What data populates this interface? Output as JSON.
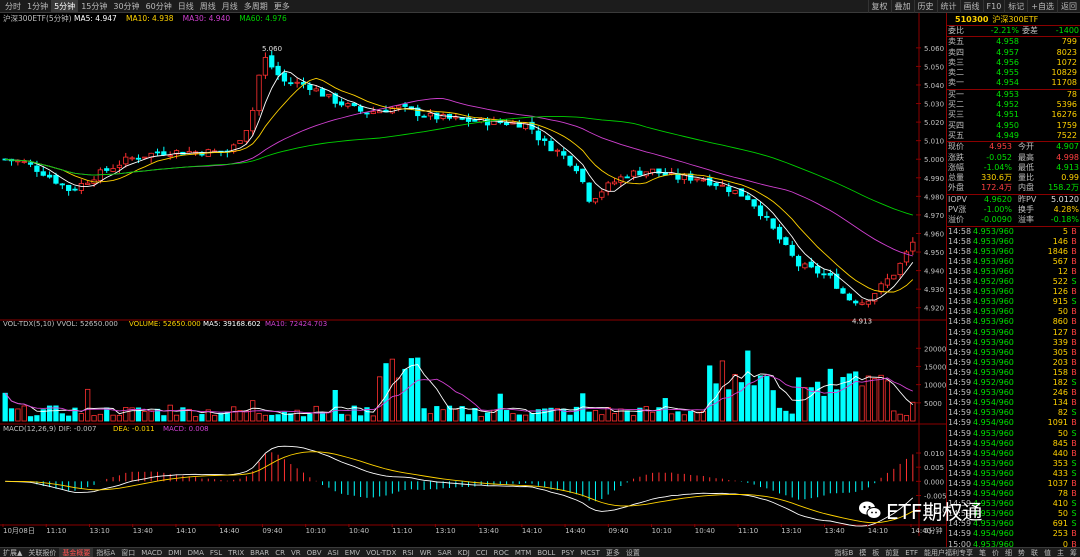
{
  "toolbar": {
    "periods": [
      "分时",
      "1分钟",
      "5分钟",
      "15分钟",
      "30分钟",
      "60分钟",
      "日线",
      "周线",
      "月线",
      "多周期",
      "更多"
    ],
    "active_period": 2,
    "right_tabs": [
      "叠加",
      "历史",
      "统计",
      "画线",
      "F10",
      "标记",
      "+自选",
      "返回"
    ],
    "right_first": "复权"
  },
  "main_chart": {
    "title": "沪深300ETF(5分钟)",
    "ma_labels": [
      {
        "text": "MA5: 4.947",
        "color": "#ffffff"
      },
      {
        "text": "MA10: 4.938",
        "color": "#ffd200"
      },
      {
        "text": "MA30: 4.940",
        "color": "#d040d0"
      },
      {
        "text": "MA60: 4.976",
        "color": "#00d000"
      }
    ],
    "high_label": "5.060",
    "low_label": "4.913",
    "y_ticks": [
      "5.060",
      "5.050",
      "5.040",
      "5.030",
      "5.020",
      "5.010",
      "5.000",
      "4.990",
      "4.980",
      "4.970",
      "4.960",
      "4.950",
      "4.940",
      "4.930",
      "4.920"
    ]
  },
  "vol_chart": {
    "labels": [
      {
        "text": "VOL-TDX(5,10)  VVOL: 52650.000",
        "color": "#c0c0c0"
      },
      {
        "text": "VOLUME: 52650.000",
        "color": "#ffd200"
      },
      {
        "text": "MA5: 39168.602",
        "color": "#ffffff"
      },
      {
        "text": "MA10: 72424.703",
        "color": "#d040d0"
      }
    ],
    "y_ticks": [
      "20000",
      "15000",
      "10000",
      "5000"
    ]
  },
  "macd_chart": {
    "labels": [
      {
        "text": "MACD(12,26,9)  DIF: -0.007",
        "color": "#c0c0c0"
      },
      {
        "text": "DEA: -0.011",
        "color": "#ffd200"
      },
      {
        "text": "MACD: 0.008",
        "color": "#d040d0"
      }
    ],
    "y_ticks": [
      "0.010",
      "0.005",
      "0.000",
      "-0.005",
      "-0.010"
    ]
  },
  "x_axis": {
    "labels": [
      "10月08日",
      "11:10",
      "13:10",
      "13:40",
      "14:10",
      "14:40",
      "09:40",
      "10:10",
      "10:40",
      "11:10",
      "13:10",
      "13:40",
      "14:10",
      "14:40",
      "09:40",
      "10:10",
      "10:40",
      "11:10",
      "13:10",
      "13:40",
      "14:10",
      "14:40"
    ],
    "unit": "5分钟"
  },
  "panel": {
    "code": "510300",
    "name": "沪深300ETF",
    "weibi": {
      "label": "委比",
      "value": "-2.21%",
      "label2": "委差",
      "value2": "-1400"
    },
    "asks": [
      {
        "label": "卖五",
        "price": "4.958",
        "vol": "799"
      },
      {
        "label": "卖四",
        "price": "4.957",
        "vol": "8023"
      },
      {
        "label": "卖三",
        "price": "4.956",
        "vol": "1072"
      },
      {
        "label": "卖二",
        "price": "4.955",
        "vol": "10829"
      },
      {
        "label": "卖一",
        "price": "4.954",
        "vol": "11708"
      }
    ],
    "bids": [
      {
        "label": "买一",
        "price": "4.953",
        "vol": "78"
      },
      {
        "label": "买二",
        "price": "4.952",
        "vol": "5396"
      },
      {
        "label": "买三",
        "price": "4.951",
        "vol": "16276"
      },
      {
        "label": "买四",
        "price": "4.950",
        "vol": "1759"
      },
      {
        "label": "买五",
        "price": "4.949",
        "vol": "7522"
      }
    ],
    "stats": [
      {
        "l1": "现价",
        "v1": "4.953",
        "c1": "red",
        "l2": "今开",
        "v2": "4.907",
        "c2": "green"
      },
      {
        "l1": "涨跌",
        "v1": "-0.052",
        "c1": "green",
        "l2": "最高",
        "v2": "4.998",
        "c2": "red"
      },
      {
        "l1": "涨幅",
        "v1": "-1.04%",
        "c1": "green",
        "l2": "最低",
        "v2": "4.913",
        "c2": "green"
      },
      {
        "l1": "总量",
        "v1": "330.6万",
        "c1": "yellow",
        "l2": "量比",
        "v2": "0.99",
        "c2": "yellow"
      },
      {
        "l1": "外盘",
        "v1": "172.4万",
        "c1": "red",
        "l2": "内盘",
        "v2": "158.2万",
        "c2": "green"
      }
    ],
    "iopv": [
      {
        "l1": "IOPV",
        "v1": "4.9620",
        "c1": "green",
        "l2": "昨PV",
        "v2": "5.0120",
        "c2": "white"
      },
      {
        "l1": "PV涨",
        "v1": "-1.00%",
        "c1": "green",
        "l2": "换手",
        "v2": "4.28%",
        "c2": "yellow"
      },
      {
        "l1": "溢价",
        "v1": "-0.0090",
        "c1": "green",
        "l2": "溢率",
        "v2": "-0.18%",
        "c2": "green"
      }
    ],
    "ticks": [
      {
        "t": "14:58",
        "p": "4.953/960",
        "v": "5",
        "s": "B"
      },
      {
        "t": "14:58",
        "p": "4.953/960",
        "v": "146",
        "s": "B"
      },
      {
        "t": "14:58",
        "p": "4.953/960",
        "v": "1846",
        "s": "B"
      },
      {
        "t": "14:58",
        "p": "4.953/960",
        "v": "567",
        "s": "B"
      },
      {
        "t": "14:58",
        "p": "4.953/960",
        "v": "12",
        "s": "B"
      },
      {
        "t": "14:58",
        "p": "4.952/960",
        "v": "522",
        "s": "S"
      },
      {
        "t": "14:58",
        "p": "4.953/960",
        "v": "126",
        "s": "B"
      },
      {
        "t": "14:58",
        "p": "4.953/960",
        "v": "915",
        "s": "S"
      },
      {
        "t": "14:58",
        "p": "4.953/960",
        "v": "50",
        "s": "B"
      },
      {
        "t": "14:58",
        "p": "4.953/960",
        "v": "860",
        "s": "B"
      },
      {
        "t": "14:59",
        "p": "4.953/960",
        "v": "127",
        "s": "B"
      },
      {
        "t": "14:59",
        "p": "4.953/960",
        "v": "339",
        "s": "B"
      },
      {
        "t": "14:59",
        "p": "4.953/960",
        "v": "305",
        "s": "B"
      },
      {
        "t": "14:59",
        "p": "4.953/960",
        "v": "203",
        "s": "B"
      },
      {
        "t": "14:59",
        "p": "4.953/960",
        "v": "158",
        "s": "B"
      },
      {
        "t": "14:59",
        "p": "4.952/960",
        "v": "182",
        "s": "S"
      },
      {
        "t": "14:59",
        "p": "4.953/960",
        "v": "246",
        "s": "B"
      },
      {
        "t": "14:59",
        "p": "4.954/960",
        "v": "134",
        "s": "B"
      },
      {
        "t": "14:59",
        "p": "4.953/960",
        "v": "82",
        "s": "S"
      },
      {
        "t": "14:59",
        "p": "4.954/960",
        "v": "1091",
        "s": "B"
      },
      {
        "t": "14:59",
        "p": "4.953/960",
        "v": "50",
        "s": "S"
      },
      {
        "t": "14:59",
        "p": "4.954/960",
        "v": "845",
        "s": "B"
      },
      {
        "t": "14:59",
        "p": "4.954/960",
        "v": "440",
        "s": "B"
      },
      {
        "t": "14:59",
        "p": "4.953/960",
        "v": "353",
        "s": "S"
      },
      {
        "t": "14:59",
        "p": "4.953/960",
        "v": "433",
        "s": "S"
      },
      {
        "t": "14:59",
        "p": "4.954/960",
        "v": "1037",
        "s": "B"
      },
      {
        "t": "14:59",
        "p": "4.954/960",
        "v": "78",
        "s": "B"
      },
      {
        "t": "14:59",
        "p": "4.953/960",
        "v": "410",
        "s": "S"
      },
      {
        "t": "14:59",
        "p": "4.953/960",
        "v": "50",
        "s": "S"
      },
      {
        "t": "14:59",
        "p": "4.953/960",
        "v": "691",
        "s": "S"
      },
      {
        "t": "14:59",
        "p": "4.954/960",
        "v": "253",
        "s": "B"
      },
      {
        "t": "15:00",
        "p": "4.953/960",
        "v": "0",
        "s": "B"
      }
    ]
  },
  "bottom": {
    "left_tabs": [
      "扩展▲",
      "关联报价",
      "基金概要"
    ],
    "active_left": 2,
    "indicator_tabs": [
      "指标A",
      "窗口",
      "MACD",
      "DMI",
      "DMA",
      "FSL",
      "TRIX",
      "BRAR",
      "CR",
      "VR",
      "OBV",
      "ASI",
      "EMV",
      "VOL-TDX",
      "RSI",
      "WR",
      "SAR",
      "KDJ",
      "CCI",
      "ROC",
      "MTM",
      "BOLL",
      "PSY",
      "MCST",
      "更多",
      "设置"
    ],
    "right_tabs": [
      "指标B",
      "模",
      "板",
      "前复",
      "ETF"
    ],
    "far_right": [
      "能用户福利专享",
      "笔",
      "价",
      "细",
      "势",
      "联",
      "值",
      "主",
      "筹"
    ]
  },
  "watermark": {
    "text": "ETF期权通"
  }
}
